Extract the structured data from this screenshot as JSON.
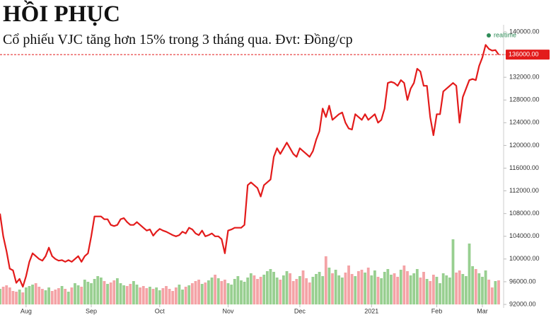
{
  "chart_data": {
    "type": "line",
    "title": "HỒI PHỤC",
    "subtitle": "Cổ phiếu VJC tăng hơn 15% trong 3 tháng qua. Đvt: Đồng/cp",
    "realtime_label": "realtime",
    "realtime_color": "#2e8b57",
    "x": [
      null,
      null,
      null,
      null,
      null,
      null,
      null,
      null,
      "Aug",
      null,
      null,
      null,
      null,
      null,
      null,
      null,
      null,
      null,
      null,
      null,
      null,
      null,
      null,
      null,
      null,
      null,
      null,
      null,
      "Sep",
      null,
      null,
      null,
      null,
      null,
      null,
      null,
      null,
      null,
      null,
      null,
      null,
      null,
      null,
      null,
      null,
      null,
      null,
      null,
      null,
      "Oct",
      null,
      null,
      null,
      null,
      null,
      null,
      null,
      null,
      null,
      null,
      null,
      null,
      null,
      null,
      null,
      null,
      null,
      null,
      null,
      null,
      "Nov",
      null,
      null,
      null,
      null,
      null,
      null,
      null,
      null,
      null,
      null,
      null,
      null,
      null,
      null,
      null,
      null,
      null,
      null,
      null,
      null,
      null,
      "Dec",
      null,
      null,
      null,
      null,
      null,
      null,
      null,
      null,
      null,
      null,
      null,
      null,
      null,
      null,
      null,
      null,
      null,
      null,
      null,
      null,
      null,
      "2021",
      null,
      null,
      null,
      null,
      null,
      null,
      null,
      null,
      null,
      null,
      null,
      null,
      null,
      null,
      null,
      null,
      null,
      null,
      null,
      "Feb",
      null,
      null,
      null,
      null,
      null,
      null,
      null,
      null,
      null,
      null,
      null,
      null,
      null,
      "Mar",
      null,
      null,
      null,
      null,
      null
    ],
    "series": [
      {
        "color": "#e31b1b",
        "values": [
          108000,
          104000,
          101400,
          98300,
          98000,
          95800,
          96500,
          95100,
          97000,
          99500,
          101000,
          100500,
          100000,
          99700,
          100500,
          102000,
          100500,
          100000,
          99700,
          99800,
          99500,
          99800,
          99500,
          100000,
          100500,
          99500,
          100500,
          101000,
          104000,
          107500,
          107500,
          107500,
          107000,
          107000,
          106000,
          105800,
          106000,
          107000,
          107200,
          106500,
          106000,
          106000,
          106500,
          106000,
          105500,
          105000,
          105200,
          104100,
          104800,
          105300,
          105000,
          104800,
          104500,
          104200,
          104000,
          104200,
          104800,
          104500,
          105500,
          105200,
          104500,
          104200,
          105000,
          104000,
          104200,
          104500,
          104000,
          104000,
          103500,
          101000,
          105000,
          105200,
          105500,
          105500,
          105500,
          106000,
          113000,
          113500,
          113000,
          112500,
          111000,
          113000,
          113500,
          114000,
          118000,
          119500,
          118500,
          119500,
          120500,
          119500,
          118500,
          118000,
          119500,
          119000,
          118500,
          118000,
          119000,
          121000,
          122500,
          126500,
          125000,
          127000,
          124500,
          125000,
          125500,
          125800,
          124000,
          123000,
          122800,
          125500,
          125000,
          124500,
          125500,
          124500,
          125000,
          125500,
          124000,
          124500,
          126500,
          131000,
          131200,
          131000,
          130500,
          131500,
          131000,
          128000,
          130000,
          131000,
          133500,
          133000,
          130500,
          130500,
          125000,
          121800,
          125500,
          125500,
          129500,
          130000,
          130500,
          131000,
          130500,
          124000,
          128500,
          130000,
          131500,
          131700,
          131500,
          134000,
          135500,
          137700,
          137000,
          136700,
          136800,
          136000
        ]
      },
      {
        "type": "bar",
        "axis": "y2",
        "values": [
          22,
          25,
          27,
          24,
          19,
          18,
          21,
          17,
          24,
          26,
          28,
          30,
          25,
          22,
          20,
          24,
          19,
          21,
          23,
          26,
          22,
          18,
          24,
          30,
          27,
          25,
          35,
          32,
          30,
          36,
          40,
          38,
          33,
          29,
          31,
          34,
          37,
          30,
          27,
          26,
          29,
          33,
          28,
          24,
          26,
          23,
          25,
          22,
          24,
          20,
          23,
          26,
          22,
          19,
          24,
          28,
          21,
          25,
          27,
          30,
          33,
          35,
          29,
          31,
          34,
          38,
          42,
          37,
          33,
          35,
          30,
          28,
          36,
          40,
          34,
          32,
          38,
          44,
          41,
          36,
          39,
          42,
          47,
          50,
          46,
          38,
          35,
          41,
          47,
          44,
          33,
          36,
          40,
          48,
          37,
          31,
          39,
          43,
          46,
          40,
          68,
          52,
          44,
          49,
          41,
          38,
          45,
          55,
          43,
          40,
          47,
          49,
          45,
          52,
          41,
          48,
          39,
          37,
          46,
          50,
          42,
          44,
          39,
          49,
          55,
          47,
          41,
          44,
          50,
          38,
          46,
          36,
          33,
          42,
          39,
          30,
          44,
          41,
          38,
          92,
          45,
          48,
          43,
          40,
          86,
          54,
          50,
          44,
          39,
          48,
          35,
          24,
          33,
          34
        ]
      }
    ],
    "up_color": "#98cf90",
    "down_color": "#f4a3a6",
    "ylim": [
      92000,
      140000
    ],
    "yticks": [
      {
        "value": 92000,
        "label": "92000.00"
      },
      {
        "value": 96000,
        "label": "96000.00"
      },
      {
        "value": 100000,
        "label": "100000.00"
      },
      {
        "value": 104000,
        "label": "104000.00"
      },
      {
        "value": 108000,
        "label": "108000.00"
      },
      {
        "value": 112000,
        "label": "112000.00"
      },
      {
        "value": 116000,
        "label": "116000.00"
      },
      {
        "value": 120000,
        "label": "120000.00"
      },
      {
        "value": 124000,
        "label": "124000.00"
      },
      {
        "value": 128000,
        "label": "128000.00"
      },
      {
        "value": 132000,
        "label": "132000.00"
      },
      {
        "value": 136000,
        "label": "136000.00"
      },
      {
        "value": 140000,
        "label": "140000.00"
      }
    ],
    "y2lim": [
      0,
      100
    ],
    "last_price": {
      "value": 136000,
      "label": "136000.00"
    },
    "grid": false
  }
}
